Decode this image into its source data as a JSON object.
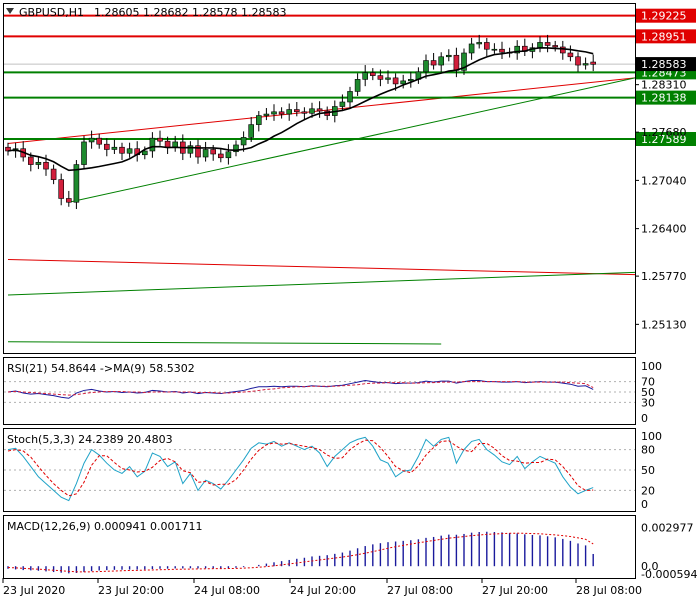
{
  "header": {
    "symbol_label": "GBPUSD,H1",
    "ohlc": "1.28605 1.28682 1.28578 1.28583",
    "arrow_icon": "triangle-down-icon"
  },
  "colors": {
    "bull": "#1e8a2e",
    "bear": "#d21f3c",
    "ma": "#000000",
    "resistance": "#e00000",
    "support": "#008000",
    "rsi": "#1a1a9c",
    "rsi_signal": "#d21f3c",
    "stoch_main": "#20a3c8",
    "stoch_signal": "#e00000",
    "macd_hist": "#1a1a9c",
    "macd_signal": "#e00000",
    "grid": "#b0b0b0"
  },
  "chart_data": [
    {
      "type": "candlestick",
      "title": "GBPUSD,H1",
      "ylim": [
        1.2475,
        1.2938
      ],
      "y_ticks": [
        1.2513,
        1.2577,
        1.264,
        1.2704,
        1.2768,
        1.2831
      ],
      "y_tick_labels": [
        "1.25130",
        "1.25770",
        "1.26400",
        "1.27040",
        "1.27680",
        "1.28310"
      ],
      "current_price": 1.28583,
      "current_price_label": "1.28583",
      "x_tick_labels": [
        "23 Jul 2020",
        "23 Jul 20:00",
        "24 Jul 08:00",
        "24 Jul 20:00",
        "27 Jul 08:00",
        "27 Jul 20:00",
        "28 Jul 08:00"
      ],
      "horizontal_levels": [
        {
          "value": 1.29225,
          "label": "1.29225",
          "kind": "resistance"
        },
        {
          "value": 1.28951,
          "label": "1.28951",
          "kind": "resistance"
        },
        {
          "value": 1.28473,
          "label": "1.28473",
          "kind": "support"
        },
        {
          "value": 1.28138,
          "label": "1.28138",
          "kind": "support"
        },
        {
          "value": 1.27589,
          "label": "1.27589",
          "kind": "support"
        }
      ],
      "trend_lines": [
        {
          "kind": "resistance",
          "from": [
            0,
            1.2753
          ],
          "to": [
            90,
            1.284
          ]
        },
        {
          "kind": "support",
          "from": [
            8,
            1.2675
          ],
          "to": [
            90,
            1.284
          ]
        },
        {
          "kind": "resistance",
          "from": [
            0,
            1.2599
          ],
          "to": [
            90,
            1.2579
          ]
        },
        {
          "kind": "support",
          "from": [
            0,
            1.2552
          ],
          "to": [
            90,
            1.2582
          ]
        },
        {
          "kind": "support",
          "from": [
            0,
            1.249
          ],
          "to": [
            57,
            1.2487
          ]
        }
      ],
      "close": [
        1.2743,
        1.2746,
        1.2735,
        1.2725,
        1.2728,
        1.2719,
        1.2705,
        1.268,
        1.2675,
        1.2725,
        1.2755,
        1.276,
        1.2752,
        1.2745,
        1.2748,
        1.274,
        1.2746,
        1.2738,
        1.2743,
        1.276,
        1.2756,
        1.2748,
        1.2755,
        1.274,
        1.275,
        1.2735,
        1.2745,
        1.2739,
        1.2734,
        1.2742,
        1.2751,
        1.2761,
        1.2778,
        1.279,
        1.2792,
        1.2795,
        1.2792,
        1.2798,
        1.2795,
        1.2793,
        1.2799,
        1.2796,
        1.279,
        1.2802,
        1.2808,
        1.2822,
        1.2838,
        1.2847,
        1.2843,
        1.2838,
        1.284,
        1.2832,
        1.2836,
        1.2838,
        1.2848,
        1.2863,
        1.2857,
        1.2868,
        1.287,
        1.285,
        1.2873,
        1.2885,
        1.2887,
        1.2878,
        1.2878,
        1.2874,
        1.2873,
        1.2882,
        1.2875,
        1.288,
        1.2887,
        1.2883,
        1.2881,
        1.2873,
        1.2868,
        1.2857,
        1.2859,
        1.2858
      ],
      "open": [
        1.2748,
        1.2743,
        1.2746,
        1.2735,
        1.2725,
        1.2728,
        1.2719,
        1.2705,
        1.268,
        1.2675,
        1.2725,
        1.2755,
        1.276,
        1.2752,
        1.2745,
        1.2748,
        1.274,
        1.2746,
        1.2738,
        1.2743,
        1.276,
        1.2756,
        1.2748,
        1.2755,
        1.274,
        1.275,
        1.2735,
        1.2745,
        1.2739,
        1.2734,
        1.2742,
        1.2751,
        1.2761,
        1.2778,
        1.279,
        1.2792,
        1.2795,
        1.2792,
        1.2798,
        1.2795,
        1.2793,
        1.2799,
        1.2796,
        1.279,
        1.2802,
        1.2808,
        1.2822,
        1.2838,
        1.2847,
        1.2843,
        1.2838,
        1.284,
        1.2832,
        1.2836,
        1.2838,
        1.2848,
        1.2863,
        1.2857,
        1.2868,
        1.287,
        1.285,
        1.2873,
        1.2885,
        1.2887,
        1.2878,
        1.2878,
        1.2874,
        1.2873,
        1.2882,
        1.2875,
        1.288,
        1.2887,
        1.2883,
        1.2881,
        1.2873,
        1.2868,
        1.2857,
        1.2861
      ]
    },
    {
      "type": "line",
      "title": "RSI(21) 54.8644 ->MA(9) 58.5302",
      "ylim": [
        0,
        100
      ],
      "levels": [
        0,
        30,
        50,
        70,
        100
      ],
      "level_labels": [
        "0",
        "30",
        "50",
        "70",
        "100"
      ],
      "series": [
        {
          "values": [
            50,
            52,
            48,
            46,
            47,
            45,
            43,
            40,
            38,
            48,
            53,
            55,
            52,
            50,
            51,
            49,
            50,
            48,
            49,
            53,
            52,
            50,
            51,
            48,
            50,
            47,
            49,
            48,
            47,
            49,
            51,
            53,
            57,
            60,
            60,
            61,
            60,
            61,
            61,
            60,
            62,
            61,
            60,
            62,
            63,
            66,
            69,
            72,
            70,
            68,
            68,
            66,
            67,
            67,
            68,
            71,
            69,
            71,
            71,
            67,
            70,
            72,
            72,
            70,
            70,
            69,
            69,
            70,
            68,
            69,
            70,
            69,
            69,
            67,
            65,
            61,
            62,
            55
          ]
        },
        {
          "values": [
            50,
            51,
            50,
            49,
            48,
            47,
            46,
            45,
            44,
            45,
            47,
            49,
            50,
            51,
            51,
            51,
            50,
            50,
            49,
            50,
            50,
            50,
            50,
            50,
            50,
            49,
            49,
            49,
            48,
            48,
            49,
            50,
            51,
            53,
            55,
            56,
            58,
            59,
            60,
            60,
            61,
            61,
            61,
            61,
            62,
            63,
            64,
            66,
            67,
            67,
            68,
            68,
            68,
            67,
            67,
            68,
            68,
            69,
            69,
            69,
            70,
            70,
            70,
            70,
            70,
            70,
            70,
            70,
            69,
            69,
            69,
            69,
            69,
            69,
            68,
            67,
            66,
            58.5
          ]
        }
      ]
    },
    {
      "type": "line",
      "title": "Stoch(5,3,3) 24.2389 20.4803",
      "ylim": [
        0,
        100
      ],
      "levels": [
        0,
        20,
        50,
        80,
        100
      ],
      "level_labels": [
        "0",
        "20",
        "50",
        "80",
        "100"
      ],
      "series": [
        {
          "values": [
            80,
            82,
            70,
            55,
            40,
            30,
            20,
            10,
            5,
            30,
            60,
            80,
            72,
            60,
            50,
            45,
            55,
            40,
            48,
            75,
            70,
            55,
            62,
            30,
            45,
            20,
            35,
            30,
            22,
            35,
            50,
            65,
            82,
            90,
            88,
            92,
            85,
            90,
            85,
            80,
            85,
            75,
            55,
            70,
            80,
            90,
            95,
            98,
            85,
            65,
            60,
            40,
            48,
            50,
            70,
            95,
            85,
            95,
            98,
            60,
            80,
            92,
            95,
            80,
            72,
            62,
            58,
            70,
            52,
            62,
            70,
            65,
            60,
            40,
            25,
            15,
            20,
            24.2
          ]
        },
        {
          "values": [
            78,
            80,
            78,
            69,
            55,
            42,
            30,
            20,
            12,
            15,
            32,
            57,
            71,
            71,
            61,
            52,
            50,
            47,
            48,
            54,
            64,
            67,
            62,
            49,
            46,
            32,
            33,
            28,
            29,
            29,
            36,
            50,
            66,
            79,
            87,
            90,
            88,
            89,
            87,
            85,
            83,
            80,
            72,
            67,
            68,
            80,
            88,
            94,
            93,
            83,
            70,
            55,
            49,
            46,
            56,
            72,
            83,
            92,
            93,
            85,
            79,
            77,
            89,
            89,
            82,
            71,
            64,
            63,
            60,
            61,
            61,
            66,
            65,
            55,
            42,
            27,
            20,
            20.5
          ]
        }
      ]
    },
    {
      "type": "bar",
      "title": "MACD(12,26,9) 0.000941 0.001711",
      "ylim": [
        -0.0006,
        0.0034
      ],
      "y_tick_labels": [
        "0.002977",
        "0.0",
        "-0.000594"
      ],
      "y_ticks": [
        0.002977,
        0.0,
        -0.000594
      ],
      "series": [
        {
          "name": "MACD",
          "values": [
            -0.0002,
            -0.00025,
            -0.0003,
            -0.00032,
            -0.00035,
            -0.0004,
            -0.00045,
            -0.0005,
            -0.00055,
            -0.00052,
            -0.00045,
            -0.00038,
            -0.00033,
            -0.0003,
            -0.00028,
            -0.00027,
            -0.00026,
            -0.00026,
            -0.00025,
            -0.00022,
            -0.0002,
            -0.00019,
            -0.00017,
            -0.00017,
            -0.00016,
            -0.00017,
            -0.00016,
            -0.00016,
            -0.00017,
            -0.00015,
            -0.00012,
            -7e-05,
            0.0,
            0.0001,
            0.0002,
            0.0003,
            0.00039,
            0.00048,
            0.00057,
            0.00065,
            0.00075,
            0.0008,
            0.00085,
            0.00095,
            0.00105,
            0.0012,
            0.00138,
            0.00155,
            0.00168,
            0.00177,
            0.00185,
            0.0019,
            0.00195,
            0.002,
            0.00207,
            0.00218,
            0.00225,
            0.00235,
            0.00243,
            0.00242,
            0.00248,
            0.00258,
            0.00263,
            0.00265,
            0.00263,
            0.0026,
            0.00255,
            0.00252,
            0.00245,
            0.0024,
            0.00237,
            0.0023,
            0.00222,
            0.0021,
            0.00195,
            0.00175,
            0.0016,
            0.00094
          ]
        },
        {
          "name": "Signal",
          "values": [
            -0.0001,
            -0.00013,
            -0.00016,
            -0.0002,
            -0.00023,
            -0.00027,
            -0.00031,
            -0.00035,
            -0.0004,
            -0.00043,
            -0.00044,
            -0.00043,
            -0.00041,
            -0.00039,
            -0.00037,
            -0.00035,
            -0.00033,
            -0.00032,
            -0.0003,
            -0.00029,
            -0.00027,
            -0.00026,
            -0.00024,
            -0.00023,
            -0.00022,
            -0.00021,
            -0.0002,
            -0.00019,
            -0.00019,
            -0.00018,
            -0.00017,
            -0.00015,
            -0.00012,
            -8e-05,
            -3e-05,
            3e-05,
            0.0001,
            0.00017,
            0.00025,
            0.00033,
            0.0004,
            0.00048,
            0.00055,
            0.00063,
            0.0007,
            0.00079,
            0.00089,
            0.001,
            0.00112,
            0.00125,
            0.00138,
            0.0015,
            0.0016,
            0.0017,
            0.0018,
            0.00189,
            0.00198,
            0.00207,
            0.00215,
            0.00222,
            0.00228,
            0.00235,
            0.0024,
            0.00245,
            0.00248,
            0.00251,
            0.00253,
            0.00254,
            0.00253,
            0.00251,
            0.00249,
            0.00245,
            0.00241,
            0.00235,
            0.00228,
            0.00218,
            0.00207,
            0.00171
          ]
        }
      ]
    }
  ]
}
